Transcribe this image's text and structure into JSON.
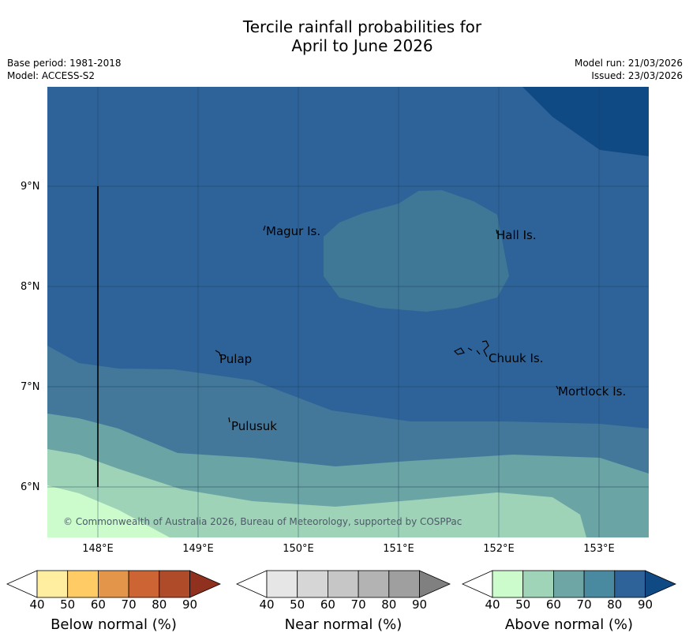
{
  "title_line1": "Tercile rainfall probabilities for",
  "title_line2": "April to June 2026",
  "meta": {
    "base_period": "Base period: 1981-2018",
    "model": "Model: ACCESS-S2",
    "model_run": "Model run: 21/03/2026",
    "issued": "Issued: 23/03/2026"
  },
  "places": {
    "magur": "Magur Is.",
    "hall": "Hall Is.",
    "pulap": "Pulap",
    "chuuk": "Chuuk Is.",
    "mortlock": "Mortlock Is.",
    "pulusuk": "Pulusuk"
  },
  "lat_labels": [
    "9°N",
    "8°N",
    "7°N",
    "6°N"
  ],
  "lon_labels": [
    "148°E",
    "149°E",
    "150°E",
    "151°E",
    "152°E",
    "153°E"
  ],
  "copyright": "© Commonwealth of Australia 2026, Bureau of Meteorology, supported by COSPPac",
  "colorbars": {
    "ticks": [
      "40",
      "50",
      "60",
      "70",
      "80",
      "90"
    ],
    "below": {
      "title": "Below normal (%)",
      "colors": [
        "#ffffff",
        "#ffeda0",
        "#fecb65",
        "#e3964a",
        "#cd6433",
        "#b04b2a",
        "#90301f"
      ]
    },
    "near": {
      "title": "Near normal (%)",
      "colors": [
        "#ffffff",
        "#e6e6e6",
        "#d6d6d6",
        "#c6c6c6",
        "#b3b3b3",
        "#9f9f9f",
        "#808080"
      ]
    },
    "above": {
      "title": "Above normal (%)",
      "colors": [
        "#ffffff",
        "#ccfccc",
        "#a0d4b8",
        "#6ea6a6",
        "#4a8aa0",
        "#2e6399",
        "#104a85"
      ]
    }
  }
}
